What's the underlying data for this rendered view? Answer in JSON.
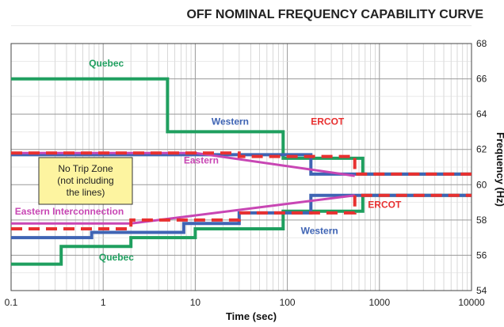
{
  "chart_data": {
    "type": "line",
    "title": "OFF NOMINAL FREQUENCY CAPABILITY CURVE",
    "xlabel": "Time (sec)",
    "ylabel": "Frequency (Hz)",
    "x_scale": "log",
    "xlim": [
      0.1,
      10000
    ],
    "ylim": [
      54,
      68
    ],
    "x_ticks": [
      "0.1",
      "1",
      "10",
      "100",
      "1000",
      "10000"
    ],
    "y_ticks": [
      "54",
      "56",
      "58",
      "60",
      "62",
      "64",
      "66",
      "68"
    ],
    "grid": true,
    "note_box": "No Trip Zone (not including the lines)",
    "colors": {
      "Quebec": "#1f9f5f",
      "Western": "#3f64b4",
      "ERCOT": "#e83030",
      "Eastern": "#c846b4"
    },
    "series": [
      {
        "name": "Quebec",
        "label": "Quebec",
        "style": "solid",
        "width": 4,
        "points": [
          [
            0.1,
            66
          ],
          [
            5,
            66
          ],
          [
            5,
            63
          ],
          [
            90,
            63
          ],
          [
            90,
            61.5
          ],
          [
            660,
            61.5
          ],
          [
            660,
            60.6
          ],
          [
            10000,
            60.6
          ]
        ]
      },
      {
        "name": "Quebec",
        "label": "Quebec",
        "style": "solid",
        "width": 4,
        "points": [
          [
            0.1,
            55.5
          ],
          [
            0.35,
            55.5
          ],
          [
            0.35,
            56.5
          ],
          [
            2,
            56.5
          ],
          [
            2,
            57
          ],
          [
            10,
            57
          ],
          [
            10,
            57.5
          ],
          [
            90,
            57.5
          ],
          [
            90,
            58.5
          ],
          [
            660,
            58.5
          ],
          [
            660,
            59.4
          ],
          [
            10000,
            59.4
          ]
        ]
      },
      {
        "name": "Western",
        "label": "Western",
        "style": "solid",
        "width": 4,
        "points": [
          [
            0.1,
            61.7
          ],
          [
            180,
            61.7
          ],
          [
            180,
            60.6
          ],
          [
            10000,
            60.6
          ]
        ]
      },
      {
        "name": "Western",
        "label": "Western",
        "style": "solid",
        "width": 4,
        "points": [
          [
            0.1,
            57
          ],
          [
            0.75,
            57
          ],
          [
            0.75,
            57.3
          ],
          [
            7.5,
            57.3
          ],
          [
            7.5,
            57.8
          ],
          [
            30,
            57.8
          ],
          [
            30,
            58.4
          ],
          [
            180,
            58.4
          ],
          [
            180,
            59.4
          ],
          [
            10000,
            59.4
          ]
        ]
      },
      {
        "name": "ERCOT",
        "label": "ERCOT",
        "style": "dashed",
        "width": 4,
        "points": [
          [
            0.1,
            61.8
          ],
          [
            30,
            61.8
          ],
          [
            30,
            61.6
          ],
          [
            540,
            61.6
          ],
          [
            540,
            60.6
          ],
          [
            10000,
            60.6
          ]
        ]
      },
      {
        "name": "ERCOT",
        "label": "ERCOT",
        "style": "dashed",
        "width": 4,
        "points": [
          [
            0.1,
            57.5
          ],
          [
            2,
            57.5
          ],
          [
            2,
            58
          ],
          [
            30,
            58
          ],
          [
            30,
            58.4
          ],
          [
            540,
            58.4
          ],
          [
            540,
            59.4
          ],
          [
            10000,
            59.4
          ]
        ]
      },
      {
        "name": "Eastern",
        "label": "Eastern",
        "style": "solid",
        "width": 3,
        "points": [
          [
            0.1,
            61.8
          ],
          [
            10,
            61.8
          ],
          [
            540,
            60.5
          ]
        ]
      },
      {
        "name": "Eastern Interconnection",
        "label": "Eastern Interconnection",
        "style": "solid",
        "width": 3,
        "points": [
          [
            0.1,
            57.8
          ],
          [
            2,
            57.8
          ],
          [
            540,
            59.4
          ]
        ]
      }
    ],
    "annotations": [
      {
        "text": "Quebec",
        "x": 0.7,
        "y": 66.7,
        "color": "#1f9f5f"
      },
      {
        "text": "Western",
        "x": 15,
        "y": 63.4,
        "color": "#3f64b4"
      },
      {
        "text": "ERCOT",
        "x": 180,
        "y": 63.4,
        "color": "#e83030"
      },
      {
        "text": "Eastern",
        "x": 7.5,
        "y": 61.2,
        "color": "#c846b4"
      },
      {
        "text": "Eastern Interconnection",
        "x": 0.11,
        "y": 58.3,
        "color": "#c846b4"
      },
      {
        "text": "ERCOT",
        "x": 750,
        "y": 58.7,
        "color": "#e83030"
      },
      {
        "text": "Western",
        "x": 140,
        "y": 57.2,
        "color": "#3f64b4"
      },
      {
        "text": "Quebec",
        "x": 0.9,
        "y": 55.7,
        "color": "#1f9f5f"
      }
    ]
  }
}
